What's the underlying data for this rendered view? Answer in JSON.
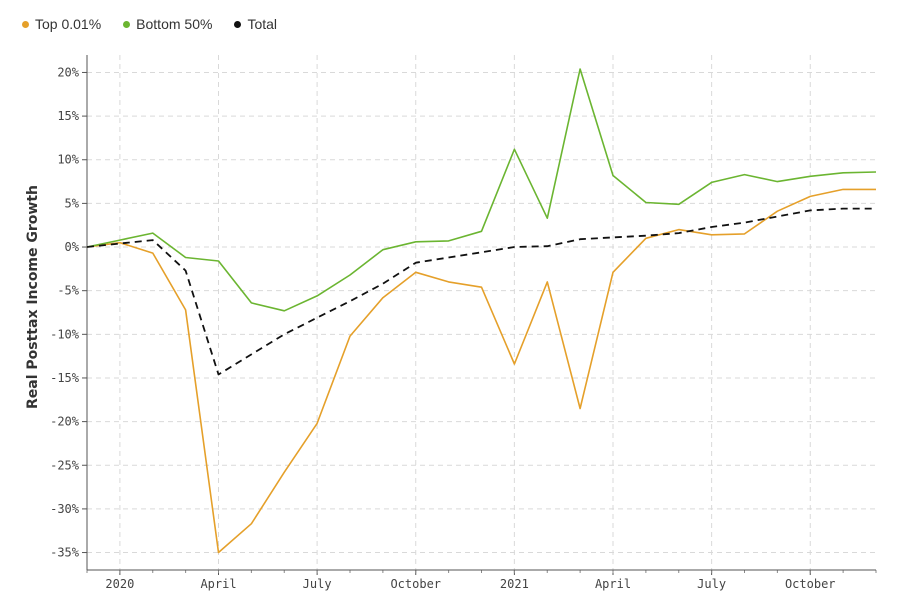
{
  "chart_data": {
    "type": "line",
    "title": "",
    "xlabel": "",
    "ylabel": "Real Posttax Income Growth",
    "x": [
      "2020-01",
      "2020-02",
      "2020-03",
      "2020-04",
      "2020-05",
      "2020-06",
      "2020-07",
      "2020-08",
      "2020-09",
      "2020-10",
      "2020-11",
      "2020-12",
      "2021-01",
      "2021-02",
      "2021-03",
      "2021-04",
      "2021-05",
      "2021-06",
      "2021-07",
      "2021-08",
      "2021-09",
      "2021-10",
      "2021-11",
      "2021-12"
    ],
    "x_ticks": [
      {
        "label": "2020",
        "x": "2020-01"
      },
      {
        "label": "April",
        "x": "2020-04"
      },
      {
        "label": "July",
        "x": "2020-07"
      },
      {
        "label": "October",
        "x": "2020-10"
      },
      {
        "label": "2021",
        "x": "2021-01"
      },
      {
        "label": "April",
        "x": "2021-04"
      },
      {
        "label": "July",
        "x": "2021-07"
      },
      {
        "label": "October",
        "x": "2021-10"
      }
    ],
    "x_start": "2019-12",
    "x_end": "2021-12",
    "y_ticks": [
      20,
      15,
      10,
      5,
      0,
      -5,
      -10,
      -15,
      -20,
      -25,
      -30,
      -35
    ],
    "y_tick_labels": [
      "20%",
      "15%",
      "10%",
      "5%",
      "0%",
      "-5%",
      "-10%",
      "-15%",
      "-20%",
      "-25%",
      "-30%",
      "-35%"
    ],
    "ylim": [
      -37,
      22
    ],
    "grid": true,
    "legend_position": "top-left",
    "series": [
      {
        "name": "Top 0.01%",
        "color": "#E5A02A",
        "style": "solid",
        "x": [
          "2019-12",
          "2020-01",
          "2020-02",
          "2020-03",
          "2020-04",
          "2020-05",
          "2020-06",
          "2020-07",
          "2020-08",
          "2020-09",
          "2020-10",
          "2020-11",
          "2020-12",
          "2021-01",
          "2021-02",
          "2021-03",
          "2021-04",
          "2021-05",
          "2021-06",
          "2021-07",
          "2021-08",
          "2021-09",
          "2021-10",
          "2021-11",
          "2021-12"
        ],
        "values": [
          0,
          0.5,
          -0.7,
          -7.2,
          -35,
          -31.7,
          -25.8,
          -20.2,
          -10.2,
          -5.8,
          -2.9,
          -4,
          -4.6,
          -13.4,
          -4,
          -18.5,
          -2.9,
          1,
          2,
          1.4,
          1.5,
          4.1,
          5.8,
          6.6,
          6.6
        ]
      },
      {
        "name": "Bottom 50%",
        "color": "#6BB531",
        "style": "solid",
        "x": [
          "2019-12",
          "2020-01",
          "2020-02",
          "2020-03",
          "2020-04",
          "2020-05",
          "2020-06",
          "2020-07",
          "2020-08",
          "2020-09",
          "2020-10",
          "2020-11",
          "2020-12",
          "2021-01",
          "2021-02",
          "2021-03",
          "2021-04",
          "2021-05",
          "2021-06",
          "2021-07",
          "2021-08",
          "2021-09",
          "2021-10",
          "2021-11",
          "2021-12"
        ],
        "values": [
          0,
          0.8,
          1.6,
          -1.2,
          -1.6,
          -6.4,
          -7.3,
          -5.6,
          -3.2,
          -0.3,
          0.6,
          0.7,
          1.8,
          11.2,
          3.3,
          20.4,
          8.2,
          5.1,
          4.9,
          7.4,
          8.3,
          7.5,
          8.1,
          8.5,
          8.6
        ]
      },
      {
        "name": "Total",
        "color": "#111111",
        "style": "dashed",
        "x": [
          "2019-12",
          "2020-01",
          "2020-02",
          "2020-03",
          "2020-04",
          "2020-05",
          "2020-06",
          "2020-07",
          "2020-08",
          "2020-09",
          "2020-10",
          "2020-11",
          "2020-12",
          "2021-01",
          "2021-02",
          "2021-03",
          "2021-04",
          "2021-05",
          "2021-06",
          "2021-07",
          "2021-08",
          "2021-09",
          "2021-10",
          "2021-11",
          "2021-12"
        ],
        "values": [
          0,
          0.4,
          0.8,
          -2.7,
          -14.6,
          -12.3,
          -10,
          -8.1,
          -6.2,
          -4.2,
          -1.8,
          -1.2,
          -0.6,
          0,
          0.1,
          0.9,
          1.1,
          1.3,
          1.6,
          2.3,
          2.8,
          3.5,
          4.2,
          4.4,
          4.4
        ]
      }
    ]
  }
}
